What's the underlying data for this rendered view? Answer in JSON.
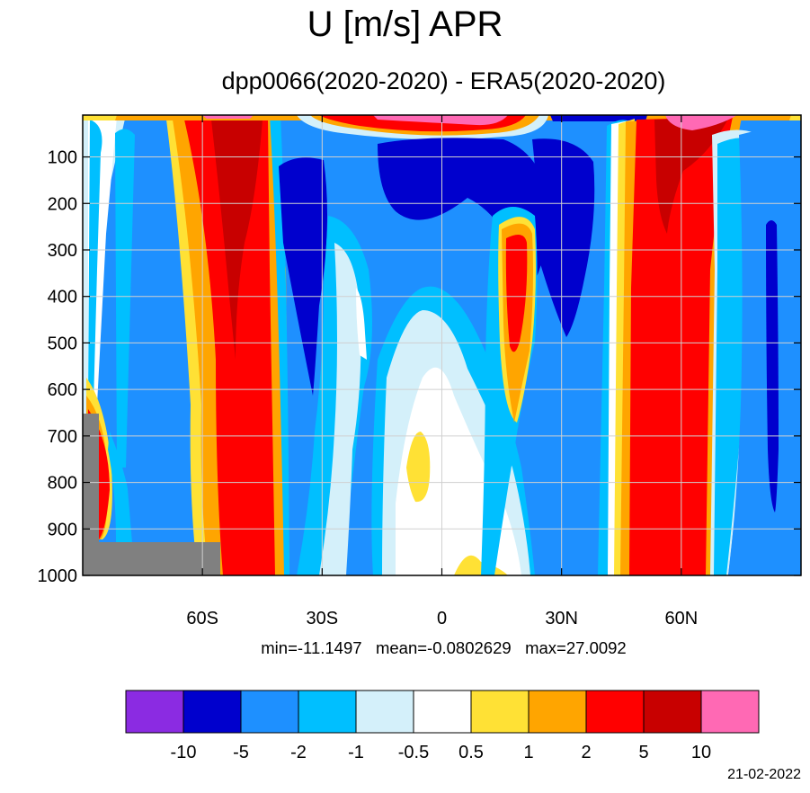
{
  "title": "U [m/s] APR",
  "subtitle": "dpp0066(2020-2020) - ERA5(2020-2020)",
  "stats": {
    "min": "min=-11.1497",
    "mean": "mean=-0.0802629",
    "max": "max=27.0092"
  },
  "date": "21-02-2022",
  "colors": {
    "below_-10": "#8b2be2",
    "-10_to_-5": "#0000cd",
    "-5_to_-2": "#1e90ff",
    "-2_to_-1": "#00bfff",
    "-1_to_-0.5": "#d4f0fa",
    "-0.5_to_0.5": "#ffffff",
    "0.5_to_1": "#ffe135",
    "1_to_2": "#ffa500",
    "2_to_5": "#ff0000",
    "5_to_10": "#c80000",
    "above_10": "#ff69b4",
    "missing": "#808080"
  },
  "chart_data": {
    "type": "heatmap",
    "title": "U [m/s] APR",
    "subtitle": "dpp0066(2020-2020) - ERA5(2020-2020)",
    "xlabel": "",
    "ylabel": "",
    "x_ticks": [
      "60S",
      "30S",
      "0",
      "30N",
      "60N"
    ],
    "x_tick_values": [
      -60,
      -30,
      0,
      30,
      60
    ],
    "xlim": [
      -90,
      90
    ],
    "y_ticks": [
      "100",
      "200",
      "300",
      "400",
      "500",
      "600",
      "700",
      "800",
      "900",
      "1000"
    ],
    "y_tick_values": [
      100,
      200,
      300,
      400,
      500,
      600,
      700,
      800,
      900,
      1000
    ],
    "ylim": [
      10,
      1000
    ],
    "y_reversed": true,
    "grid": true,
    "colorbar": {
      "levels": [
        "-10",
        "-5",
        "-2",
        "-1",
        "-0.5",
        "0.5",
        "1",
        "2",
        "5",
        "10"
      ],
      "level_values": [
        -10,
        -5,
        -2,
        -1,
        -0.5,
        0.5,
        1,
        2,
        5,
        10
      ],
      "placement": "bottom"
    },
    "field_bands": [
      {
        "lat_range": [
          -85,
          -80
        ],
        "value_range": [
          2,
          5
        ],
        "pressure_range": [
          650,
          900
        ]
      },
      {
        "lat_range": [
          -80,
          -62
        ],
        "value_range": [
          -5,
          -2
        ],
        "pressure_range": [
          50,
          1000
        ]
      },
      {
        "lat_range": [
          -58,
          -47
        ],
        "value_range": [
          2,
          5
        ],
        "pressure_range": [
          10,
          1000
        ]
      },
      {
        "lat_range": [
          -55,
          -48
        ],
        "value_range": [
          5,
          10
        ],
        "pressure_range": [
          10,
          400
        ]
      },
      {
        "lat_range": [
          -40,
          -20
        ],
        "value_range": [
          -5,
          -2
        ],
        "pressure_range": [
          60,
          1000
        ]
      },
      {
        "lat_range": [
          -35,
          -27
        ],
        "value_range": [
          -10,
          -5
        ],
        "pressure_range": [
          90,
          420
        ]
      },
      {
        "lat_range": [
          -12,
          20
        ],
        "value_range": [
          -10,
          -5
        ],
        "pressure_range": [
          50,
          500
        ]
      },
      {
        "lat_range": [
          -5,
          5
        ],
        "value_range": [
          -0.5,
          0.5
        ],
        "pressure_range": [
          400,
          1000
        ]
      },
      {
        "lat_range": [
          -7,
          -3
        ],
        "value_range": [
          0.5,
          1
        ],
        "pressure_range": [
          700,
          850
        ]
      },
      {
        "lat_range": [
          12,
          22
        ],
        "value_range": [
          1,
          2
        ],
        "pressure_range": [
          250,
          700
        ]
      },
      {
        "lat_range": [
          15,
          20
        ],
        "value_range": [
          2,
          5
        ],
        "pressure_range": [
          270,
          500
        ]
      },
      {
        "lat_range": [
          45,
          66
        ],
        "value_range": [
          2,
          5
        ],
        "pressure_range": [
          10,
          1000
        ]
      },
      {
        "lat_range": [
          52,
          60
        ],
        "value_range": [
          5,
          10
        ],
        "pressure_range": [
          20,
          250
        ]
      },
      {
        "lat_range": [
          75,
          88
        ],
        "value_range": [
          -5,
          -2
        ],
        "pressure_range": [
          50,
          1000
        ]
      },
      {
        "lat_range": [
          82,
          85
        ],
        "value_range": [
          -10,
          -5
        ],
        "pressure_range": [
          220,
          850
        ]
      }
    ],
    "summary": {
      "min": -11.1497,
      "mean": -0.0802629,
      "max": 27.0092
    }
  }
}
